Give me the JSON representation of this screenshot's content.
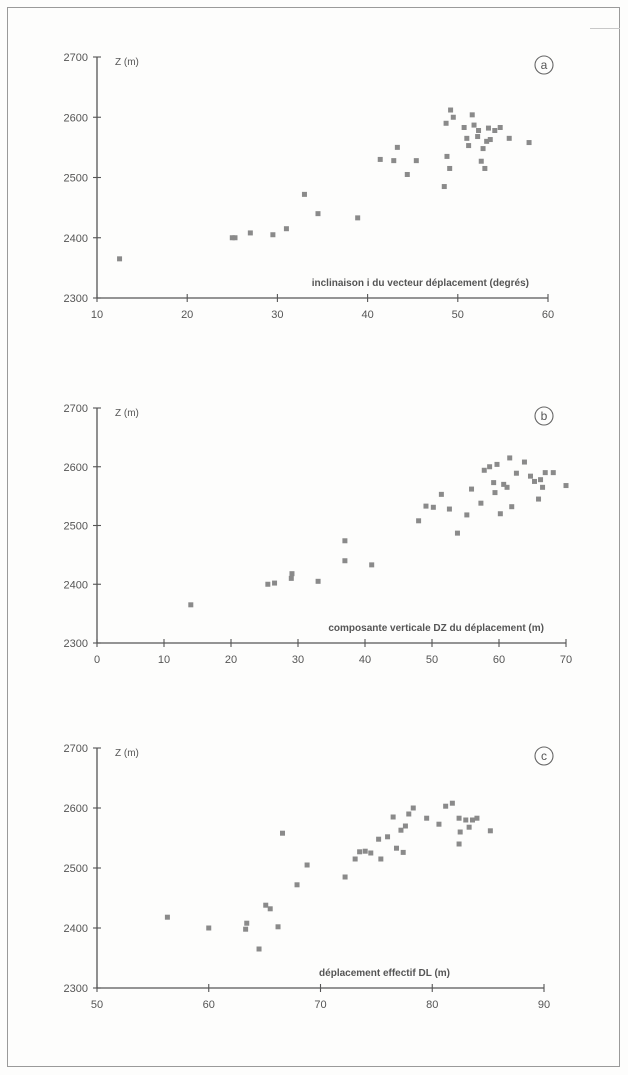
{
  "chart_data": [
    {
      "type": "scatter",
      "panel_label": "a",
      "ylabel": "Z (m)",
      "xlabel": "inclinaison i du vecteur déplacement (degrés)",
      "xlim": [
        10,
        60
      ],
      "ylim": [
        2300,
        2700
      ],
      "xticks": [
        10,
        20,
        30,
        40,
        50,
        60
      ],
      "yticks": [
        2300,
        2400,
        2500,
        2600,
        2700
      ],
      "points": [
        [
          12.5,
          2365
        ],
        [
          25,
          2400
        ],
        [
          25.3,
          2400
        ],
        [
          27,
          2408
        ],
        [
          29.5,
          2405
        ],
        [
          31,
          2415
        ],
        [
          33,
          2472
        ],
        [
          34.5,
          2440
        ],
        [
          38.9,
          2433
        ],
        [
          41.4,
          2530
        ],
        [
          42.9,
          2528
        ],
        [
          43.3,
          2550
        ],
        [
          44.4,
          2505
        ],
        [
          45.4,
          2528
        ],
        [
          48.5,
          2485
        ],
        [
          48.7,
          2590
        ],
        [
          48.8,
          2535
        ],
        [
          49.1,
          2515
        ],
        [
          49.2,
          2612
        ],
        [
          49.5,
          2600
        ],
        [
          50.7,
          2583
        ],
        [
          51,
          2565
        ],
        [
          51.2,
          2553
        ],
        [
          51.6,
          2604
        ],
        [
          51.8,
          2587
        ],
        [
          52.2,
          2568
        ],
        [
          52.3,
          2578
        ],
        [
          52.6,
          2527
        ],
        [
          52.8,
          2548
        ],
        [
          53,
          2515
        ],
        [
          53.2,
          2560
        ],
        [
          53.4,
          2582
        ],
        [
          53.6,
          2563
        ],
        [
          54.1,
          2578
        ],
        [
          54.7,
          2583
        ],
        [
          55.7,
          2565
        ],
        [
          57.9,
          2558
        ]
      ]
    },
    {
      "type": "scatter",
      "panel_label": "b",
      "ylabel": "Z (m)",
      "xlabel": "composante verticale DZ du déplacement (m)",
      "xlim": [
        0,
        70
      ],
      "ylim": [
        2300,
        2700
      ],
      "xticks": [
        0,
        10,
        20,
        30,
        40,
        50,
        60,
        70
      ],
      "yticks": [
        2300,
        2400,
        2500,
        2600,
        2700
      ],
      "points": [
        [
          14,
          2365
        ],
        [
          25.5,
          2400
        ],
        [
          26.5,
          2402
        ],
        [
          29,
          2410
        ],
        [
          29.1,
          2418
        ],
        [
          33,
          2405
        ],
        [
          37,
          2440
        ],
        [
          37,
          2474
        ],
        [
          41,
          2433
        ],
        [
          48,
          2508
        ],
        [
          49.1,
          2533
        ],
        [
          50.2,
          2531
        ],
        [
          51.4,
          2553
        ],
        [
          52.6,
          2528
        ],
        [
          53.8,
          2487
        ],
        [
          55.2,
          2518
        ],
        [
          55.9,
          2562
        ],
        [
          57.3,
          2538
        ],
        [
          57.8,
          2594
        ],
        [
          58.6,
          2600
        ],
        [
          59.2,
          2573
        ],
        [
          59.4,
          2556
        ],
        [
          59.7,
          2604
        ],
        [
          60.2,
          2520
        ],
        [
          60.7,
          2570
        ],
        [
          61.2,
          2565
        ],
        [
          61.6,
          2615
        ],
        [
          61.9,
          2532
        ],
        [
          62.6,
          2589
        ],
        [
          63.8,
          2608
        ],
        [
          64.7,
          2584
        ],
        [
          65.3,
          2575
        ],
        [
          65.9,
          2545
        ],
        [
          66.2,
          2578
        ],
        [
          66.5,
          2565
        ],
        [
          66.9,
          2590
        ],
        [
          68.1,
          2590
        ],
        [
          70,
          2568
        ]
      ]
    },
    {
      "type": "scatter",
      "panel_label": "c",
      "ylabel": "Z (m)",
      "xlabel": "déplacement effectif DL (m)",
      "xlim": [
        50,
        90
      ],
      "ylim": [
        2300,
        2700
      ],
      "xticks": [
        50,
        60,
        70,
        80,
        90
      ],
      "yticks": [
        2300,
        2400,
        2500,
        2600,
        2700
      ],
      "points": [
        [
          56.3,
          2418
        ],
        [
          60,
          2400
        ],
        [
          63.3,
          2398
        ],
        [
          63.4,
          2408
        ],
        [
          64.5,
          2365
        ],
        [
          65.1,
          2438
        ],
        [
          65.5,
          2432
        ],
        [
          66.2,
          2402
        ],
        [
          66.6,
          2558
        ],
        [
          67.9,
          2472
        ],
        [
          68.8,
          2505
        ],
        [
          72.2,
          2485
        ],
        [
          73.1,
          2515
        ],
        [
          73.5,
          2527
        ],
        [
          74,
          2528
        ],
        [
          74.5,
          2525
        ],
        [
          75.2,
          2548
        ],
        [
          75.4,
          2515
        ],
        [
          76,
          2552
        ],
        [
          76.5,
          2585
        ],
        [
          76.8,
          2533
        ],
        [
          77.2,
          2563
        ],
        [
          77.4,
          2526
        ],
        [
          77.6,
          2570
        ],
        [
          77.9,
          2590
        ],
        [
          78.3,
          2600
        ],
        [
          79.5,
          2583
        ],
        [
          80.6,
          2573
        ],
        [
          81.2,
          2603
        ],
        [
          81.8,
          2608
        ],
        [
          82.4,
          2583
        ],
        [
          82.4,
          2540
        ],
        [
          82.5,
          2560
        ],
        [
          83,
          2580
        ],
        [
          83.3,
          2568
        ],
        [
          83.6,
          2580
        ],
        [
          84,
          2583
        ],
        [
          85.2,
          2562
        ]
      ]
    }
  ]
}
